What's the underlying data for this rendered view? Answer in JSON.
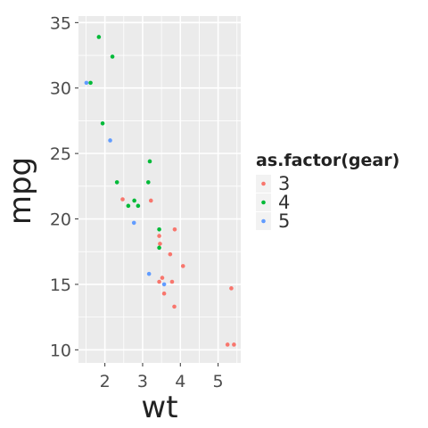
{
  "chart_data": {
    "type": "scatter",
    "xlabel": "wt",
    "ylabel": "mpg",
    "xlim": [
      1.3,
      5.6
    ],
    "ylim": [
      9.0,
      35.5
    ],
    "x_ticks": [
      2,
      3,
      4,
      5
    ],
    "y_ticks": [
      10,
      15,
      20,
      25,
      30,
      35
    ],
    "grid": true,
    "legend": {
      "title": "as.factor(gear)",
      "placement": "right",
      "entries": [
        "3",
        "4",
        "5"
      ]
    },
    "series": [
      {
        "name": "3",
        "color": "#F8766D",
        "points": [
          [
            2.47,
            21.5
          ],
          [
            3.22,
            21.4
          ],
          [
            3.44,
            18.7
          ],
          [
            3.46,
            18.1
          ],
          [
            3.57,
            14.3
          ],
          [
            4.07,
            16.4
          ],
          [
            3.73,
            17.3
          ],
          [
            3.78,
            15.2
          ],
          [
            5.25,
            10.4
          ],
          [
            5.42,
            10.4
          ],
          [
            5.35,
            14.7
          ],
          [
            3.52,
            15.5
          ],
          [
            3.44,
            15.2
          ],
          [
            3.84,
            13.3
          ],
          [
            3.85,
            19.2
          ]
        ]
      },
      {
        "name": "4",
        "color": "#00BA38",
        "points": [
          [
            2.62,
            21.0
          ],
          [
            2.88,
            21.0
          ],
          [
            2.32,
            22.8
          ],
          [
            3.19,
            24.4
          ],
          [
            3.15,
            22.8
          ],
          [
            3.44,
            19.2
          ],
          [
            3.44,
            17.8
          ],
          [
            2.2,
            32.4
          ],
          [
            1.62,
            30.4
          ],
          [
            1.84,
            33.9
          ],
          [
            1.94,
            27.3
          ],
          [
            2.78,
            21.4
          ]
        ]
      },
      {
        "name": "5",
        "color": "#619CFF",
        "points": [
          [
            2.14,
            26.0
          ],
          [
            1.51,
            30.4
          ],
          [
            3.17,
            15.8
          ],
          [
            2.77,
            19.7
          ],
          [
            3.57,
            15.0
          ]
        ]
      }
    ]
  }
}
